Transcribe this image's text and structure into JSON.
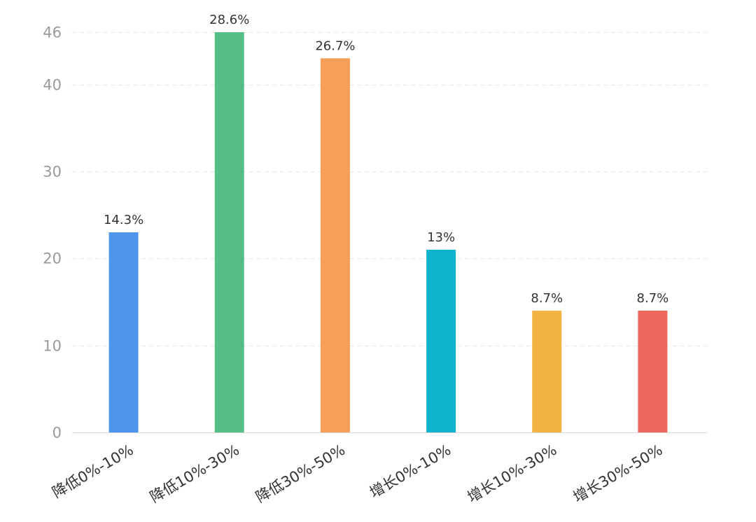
{
  "chart_data": {
    "type": "bar",
    "title": "",
    "xlabel": "",
    "ylabel": "",
    "categories": [
      "降低0%-10%",
      "降低10%-30%",
      "降低30%-50%",
      "增长0%-10%",
      "增长10%-30%",
      "增长30%-50%"
    ],
    "values": [
      23,
      46,
      43,
      21,
      14,
      14
    ],
    "data_labels": [
      "14.3%",
      "28.6%",
      "26.7%",
      "13%",
      "8.7%",
      "8.7%"
    ],
    "colors": [
      "#4e95ec",
      "#55be86",
      "#f59f5a",
      "#10b3cd",
      "#f3b443",
      "#ee685d"
    ],
    "y_ticks": [
      0,
      10,
      20,
      30,
      40,
      46
    ],
    "ylim": [
      0,
      46
    ],
    "grid": true,
    "legend": "none"
  }
}
